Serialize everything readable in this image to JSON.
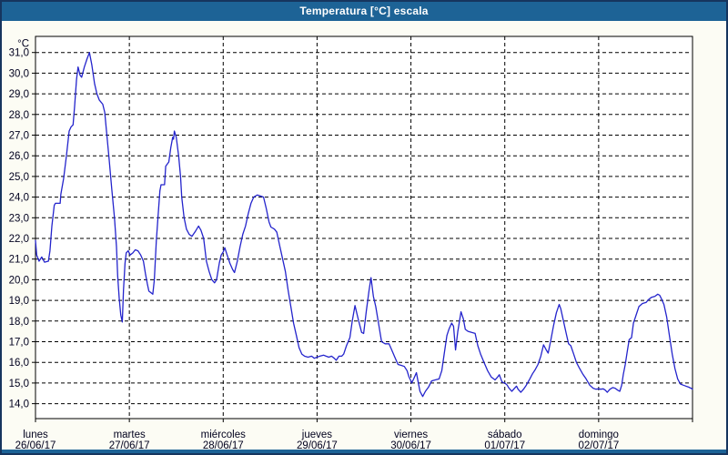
{
  "window": {
    "title": "Temperatura [°C] escala"
  },
  "colors": {
    "titlebar_bg": "#1d6396",
    "titlebar_text": "#ffffff",
    "window_bg": "#fcfcf4",
    "window_border": "#16355e",
    "plot_bg": "#ffffff",
    "plot_border": "#000000",
    "grid": "#000000",
    "line": "#2424cc",
    "label_text": "#00001e",
    "bottom_strip": "#1d6396"
  },
  "chart_data": {
    "type": "line",
    "title": "Temperatura [°C] escala",
    "y_unit_label": "°C",
    "ylim": [
      14.0,
      31.0
    ],
    "y_tick_step": 1.0,
    "y_tick_labels": [
      "31,0",
      "30,0",
      "29,0",
      "28,0",
      "27,0",
      "26,0",
      "25,0",
      "24,0",
      "23,0",
      "22,0",
      "21,0",
      "20,0",
      "19,0",
      "18,0",
      "17,0",
      "16,0",
      "15,0",
      "14,0"
    ],
    "grid": "dashed",
    "legend_position": "none",
    "x_axis": {
      "hours_total": 168,
      "days": [
        {
          "name": "lunes",
          "date": "26/06/17"
        },
        {
          "name": "martes",
          "date": "27/06/17"
        },
        {
          "name": "miércoles",
          "date": "28/06/17"
        },
        {
          "name": "jueves",
          "date": "29/06/17"
        },
        {
          "name": "viernes",
          "date": "30/06/17"
        },
        {
          "name": "sábado",
          "date": "01/07/17"
        },
        {
          "name": "domingo",
          "date": "02/07/17"
        }
      ]
    },
    "series": [
      {
        "name": "Temperatura",
        "color": "#2424cc",
        "points": [
          [
            0,
            21.9
          ],
          [
            0.3,
            21.2
          ],
          [
            0.9,
            20.9
          ],
          [
            1.6,
            21.1
          ],
          [
            2.3,
            20.85
          ],
          [
            3.3,
            20.9
          ],
          [
            3.7,
            21.4
          ],
          [
            4.2,
            22.6
          ],
          [
            4.8,
            23.6
          ],
          [
            5.1,
            23.7
          ],
          [
            6.3,
            23.7
          ],
          [
            6.5,
            24.15
          ],
          [
            7.2,
            24.9
          ],
          [
            7.9,
            26.0
          ],
          [
            8.6,
            27.2
          ],
          [
            9.1,
            27.4
          ],
          [
            9.6,
            27.5
          ],
          [
            10.0,
            28.4
          ],
          [
            10.5,
            29.7
          ],
          [
            10.9,
            30.3
          ],
          [
            11.4,
            29.9
          ],
          [
            11.8,
            29.8
          ],
          [
            12.5,
            30.3
          ],
          [
            13.2,
            30.7
          ],
          [
            13.8,
            31.0
          ],
          [
            14.4,
            30.4
          ],
          [
            15.1,
            29.5
          ],
          [
            15.7,
            29.0
          ],
          [
            16.3,
            28.7
          ],
          [
            17.2,
            28.5
          ],
          [
            17.7,
            28.1
          ],
          [
            18.1,
            27.3
          ],
          [
            18.8,
            25.9
          ],
          [
            19.5,
            24.4
          ],
          [
            20.2,
            23.0
          ],
          [
            20.7,
            21.6
          ],
          [
            21.0,
            20.2
          ],
          [
            21.4,
            19.1
          ],
          [
            21.8,
            18.3
          ],
          [
            22.2,
            17.95
          ],
          [
            22.5,
            19.5
          ],
          [
            22.9,
            20.8
          ],
          [
            23.2,
            21.3
          ],
          [
            23.7,
            21.4
          ],
          [
            24.2,
            21.2
          ],
          [
            24.9,
            21.3
          ],
          [
            25.5,
            21.45
          ],
          [
            26.2,
            21.4
          ],
          [
            26.9,
            21.2
          ],
          [
            27.6,
            20.9
          ],
          [
            28.1,
            20.3
          ],
          [
            28.6,
            19.8
          ],
          [
            29.0,
            19.45
          ],
          [
            30.0,
            19.3
          ],
          [
            30.4,
            20.0
          ],
          [
            30.9,
            21.9
          ],
          [
            31.4,
            23.2
          ],
          [
            31.8,
            24.3
          ],
          [
            32.1,
            24.6
          ],
          [
            33.0,
            24.6
          ],
          [
            33.3,
            25.5
          ],
          [
            34.1,
            25.7
          ],
          [
            34.6,
            26.4
          ],
          [
            35.1,
            26.9
          ],
          [
            35.3,
            26.8
          ],
          [
            35.5,
            27.2
          ],
          [
            36.0,
            26.9
          ],
          [
            36.6,
            26.0
          ],
          [
            37.1,
            25.0
          ],
          [
            37.4,
            24.0
          ],
          [
            38.0,
            23.0
          ],
          [
            38.6,
            22.45
          ],
          [
            39.3,
            22.2
          ],
          [
            40.0,
            22.1
          ],
          [
            40.9,
            22.35
          ],
          [
            41.7,
            22.6
          ],
          [
            42.3,
            22.4
          ],
          [
            43.0,
            22.0
          ],
          [
            43.7,
            20.9
          ],
          [
            44.4,
            20.4
          ],
          [
            45.1,
            20.0
          ],
          [
            45.8,
            19.85
          ],
          [
            46.3,
            20.0
          ],
          [
            47.0,
            20.8
          ],
          [
            47.5,
            21.2
          ],
          [
            48.0,
            21.35
          ],
          [
            48.4,
            21.55
          ],
          [
            49.0,
            21.2
          ],
          [
            49.7,
            20.8
          ],
          [
            50.4,
            20.5
          ],
          [
            50.9,
            20.35
          ],
          [
            51.6,
            20.9
          ],
          [
            52.3,
            21.6
          ],
          [
            53.0,
            22.2
          ],
          [
            53.7,
            22.6
          ],
          [
            54.4,
            23.2
          ],
          [
            55.1,
            23.7
          ],
          [
            55.8,
            24.0
          ],
          [
            56.7,
            24.1
          ],
          [
            57.6,
            24.05
          ],
          [
            58.3,
            24.0
          ],
          [
            59.0,
            23.45
          ],
          [
            59.7,
            22.8
          ],
          [
            60.2,
            22.55
          ],
          [
            61.1,
            22.45
          ],
          [
            61.7,
            22.3
          ],
          [
            62.5,
            21.6
          ],
          [
            63.2,
            21.0
          ],
          [
            63.9,
            20.4
          ],
          [
            64.6,
            19.5
          ],
          [
            65.3,
            18.7
          ],
          [
            66.0,
            17.9
          ],
          [
            66.7,
            17.3
          ],
          [
            67.4,
            16.7
          ],
          [
            68.1,
            16.4
          ],
          [
            68.8,
            16.3
          ],
          [
            69.7,
            16.25
          ],
          [
            70.6,
            16.3
          ],
          [
            71.3,
            16.2
          ],
          [
            72.0,
            16.25
          ],
          [
            72.7,
            16.3
          ],
          [
            73.7,
            16.35
          ],
          [
            74.3,
            16.3
          ],
          [
            75.0,
            16.25
          ],
          [
            75.7,
            16.3
          ],
          [
            76.4,
            16.2
          ],
          [
            76.9,
            16.1
          ],
          [
            77.6,
            16.3
          ],
          [
            78.3,
            16.3
          ],
          [
            78.8,
            16.4
          ],
          [
            79.5,
            16.8
          ],
          [
            80.4,
            17.2
          ],
          [
            81.0,
            18.0
          ],
          [
            81.7,
            18.75
          ],
          [
            82.5,
            18.1
          ],
          [
            83.4,
            17.45
          ],
          [
            83.9,
            17.4
          ],
          [
            84.6,
            18.5
          ],
          [
            85.3,
            19.5
          ],
          [
            85.8,
            20.1
          ],
          [
            86.4,
            19.2
          ],
          [
            87.0,
            18.7
          ],
          [
            87.8,
            17.8
          ],
          [
            88.5,
            17.0
          ],
          [
            89.4,
            16.9
          ],
          [
            90.4,
            16.9
          ],
          [
            91.1,
            16.6
          ],
          [
            92.0,
            16.2
          ],
          [
            92.7,
            15.9
          ],
          [
            93.6,
            15.85
          ],
          [
            94.3,
            15.8
          ],
          [
            95.0,
            15.6
          ],
          [
            95.5,
            15.3
          ],
          [
            96.0,
            15.1
          ],
          [
            96.2,
            15.0
          ],
          [
            96.7,
            15.2
          ],
          [
            97.4,
            15.5
          ],
          [
            97.8,
            15.1
          ],
          [
            98.3,
            14.6
          ],
          [
            99.0,
            14.35
          ],
          [
            99.7,
            14.6
          ],
          [
            100.5,
            14.8
          ],
          [
            101.3,
            15.1
          ],
          [
            102.2,
            15.15
          ],
          [
            103.2,
            15.2
          ],
          [
            103.9,
            15.6
          ],
          [
            104.5,
            16.4
          ],
          [
            105.2,
            17.3
          ],
          [
            105.7,
            17.6
          ],
          [
            106.4,
            17.9
          ],
          [
            106.9,
            17.75
          ],
          [
            107.4,
            16.6
          ],
          [
            108.0,
            17.5
          ],
          [
            108.8,
            18.45
          ],
          [
            109.4,
            18.1
          ],
          [
            109.9,
            17.6
          ],
          [
            110.6,
            17.5
          ],
          [
            111.5,
            17.45
          ],
          [
            112.4,
            17.4
          ],
          [
            113.1,
            16.8
          ],
          [
            113.8,
            16.4
          ],
          [
            114.7,
            16.0
          ],
          [
            115.6,
            15.6
          ],
          [
            116.5,
            15.3
          ],
          [
            117.5,
            15.15
          ],
          [
            118.2,
            15.3
          ],
          [
            118.6,
            15.4
          ],
          [
            119.3,
            15.05
          ],
          [
            120.0,
            15.0
          ],
          [
            120.6,
            14.9
          ],
          [
            121.1,
            14.75
          ],
          [
            121.8,
            14.6
          ],
          [
            122.5,
            14.75
          ],
          [
            123.0,
            14.85
          ],
          [
            123.4,
            14.7
          ],
          [
            124.1,
            14.55
          ],
          [
            124.8,
            14.7
          ],
          [
            125.5,
            14.9
          ],
          [
            126.4,
            15.2
          ],
          [
            127.1,
            15.45
          ],
          [
            127.8,
            15.65
          ],
          [
            128.5,
            15.9
          ],
          [
            129.2,
            16.3
          ],
          [
            129.9,
            16.85
          ],
          [
            130.6,
            16.6
          ],
          [
            131.1,
            16.45
          ],
          [
            131.8,
            17.1
          ],
          [
            132.5,
            17.8
          ],
          [
            133.2,
            18.4
          ],
          [
            133.9,
            18.8
          ],
          [
            134.3,
            18.6
          ],
          [
            135.0,
            18.0
          ],
          [
            135.7,
            17.4
          ],
          [
            136.3,
            16.9
          ],
          [
            136.9,
            16.8
          ],
          [
            137.6,
            16.4
          ],
          [
            138.3,
            16.0
          ],
          [
            139.0,
            15.75
          ],
          [
            139.9,
            15.45
          ],
          [
            140.8,
            15.2
          ],
          [
            141.7,
            14.9
          ],
          [
            142.6,
            14.75
          ],
          [
            143.3,
            14.7
          ],
          [
            144.0,
            14.72
          ],
          [
            144.5,
            14.7
          ],
          [
            145.2,
            14.72
          ],
          [
            145.7,
            14.65
          ],
          [
            146.2,
            14.55
          ],
          [
            146.9,
            14.7
          ],
          [
            147.6,
            14.78
          ],
          [
            148.2,
            14.75
          ],
          [
            148.9,
            14.65
          ],
          [
            149.4,
            14.6
          ],
          [
            149.9,
            14.9
          ],
          [
            150.3,
            15.4
          ],
          [
            150.8,
            15.9
          ],
          [
            151.3,
            16.5
          ],
          [
            151.8,
            17.1
          ],
          [
            152.4,
            17.2
          ],
          [
            152.9,
            17.9
          ],
          [
            153.6,
            18.3
          ],
          [
            154.3,
            18.7
          ],
          [
            155.2,
            18.85
          ],
          [
            156.1,
            18.9
          ],
          [
            156.8,
            19.05
          ],
          [
            157.5,
            19.15
          ],
          [
            158.4,
            19.2
          ],
          [
            159.1,
            19.3
          ],
          [
            159.6,
            19.25
          ],
          [
            160.0,
            19.1
          ],
          [
            160.7,
            18.8
          ],
          [
            161.4,
            18.2
          ],
          [
            162.1,
            17.3
          ],
          [
            162.8,
            16.4
          ],
          [
            163.5,
            15.7
          ],
          [
            164.2,
            15.2
          ],
          [
            164.9,
            14.95
          ],
          [
            165.6,
            14.9
          ],
          [
            166.3,
            14.85
          ],
          [
            167.0,
            14.8
          ],
          [
            167.6,
            14.75
          ],
          [
            168.0,
            14.7
          ]
        ]
      }
    ]
  }
}
